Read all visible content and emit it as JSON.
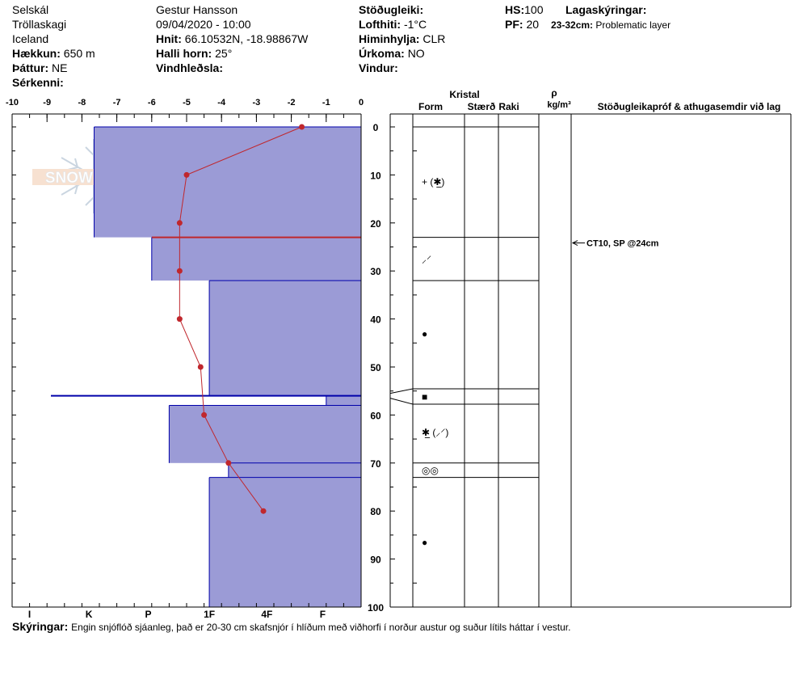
{
  "header": {
    "location": "Selskál",
    "region": "Tröllaskagi",
    "country": "Iceland",
    "elevation_label": "Hækkun:",
    "elevation_value": "650 m",
    "aspect_label": "Þáttur:",
    "aspect_value": "NE",
    "features_label": "Sérkenni:",
    "observer": "Gestur Hansson",
    "datetime": "09/04/2020 - 10:00",
    "coords_label": "Hnit:",
    "coords_value": "66.10532N, -18.98867W",
    "slope_label": "Halli horn:",
    "slope_value": "25°",
    "wind_loading_label": "Vindhleðsla:",
    "stability_label": "Stöðugleiki:",
    "air_temp_label": "Lofthiti:",
    "air_temp_value": "-1°C",
    "sky_label": "Himinhylja:",
    "sky_value": "CLR",
    "precip_label": "Úrkoma:",
    "precip_value": "NO",
    "wind_label": "Vindur:",
    "hs_label": "HS:",
    "hs_value": "100",
    "pf_label": "PF:",
    "pf_value": "20",
    "legend_label": "Lagaskýringar:",
    "problem_range": "23-32cm:",
    "problem_text": "Problematic layer"
  },
  "logo_text": "SNOW PILOT",
  "table_headers": {
    "crystal": "Kristal",
    "form": "Form",
    "size": "Stærð",
    "moisture": "Raki",
    "rho": "ρ",
    "density_unit": "kg/m³",
    "tests": "Stöðugleikapróf & athugasemdir við lag"
  },
  "footer": {
    "label": "Skýringar:",
    "text": "Engin snjóflóð sjáanleg, það er 20-30 cm skafsnjór í hlíðum með viðhorfi í norður austur og suður lítils háttar í vestur."
  },
  "chart_data": {
    "type": "snow-profile",
    "temp_axis": {
      "ticks": [
        -10,
        -9,
        -8,
        -7,
        -6,
        -5,
        -4,
        -3,
        -2,
        -1,
        0
      ],
      "range": [
        -10,
        0
      ]
    },
    "depth_axis": {
      "ticks": [
        0,
        10,
        20,
        30,
        40,
        50,
        60,
        70,
        80,
        90,
        100
      ],
      "range": [
        0,
        100
      ]
    },
    "hardness_axis": {
      "labels": [
        "I",
        "K",
        "P",
        "1F",
        "4F",
        "F"
      ]
    },
    "temperature_profile": [
      {
        "depth": 0,
        "temp": -1.7
      },
      {
        "depth": 10,
        "temp": -5.0
      },
      {
        "depth": 20,
        "temp": -5.2
      },
      {
        "depth": 30,
        "temp": -5.2
      },
      {
        "depth": 40,
        "temp": -5.2
      },
      {
        "depth": 50,
        "temp": -4.6
      },
      {
        "depth": 60,
        "temp": -4.5
      },
      {
        "depth": 70,
        "temp": -3.8
      },
      {
        "depth": 80,
        "temp": -2.8
      }
    ],
    "layers": [
      {
        "top": 0,
        "bottom": 23,
        "hardness_pos": 2.35,
        "form": "+ (✱̲)"
      },
      {
        "top": 23,
        "bottom": 32,
        "hardness_pos": 4.0,
        "form": "⸝⸍",
        "problem": true
      },
      {
        "top": 32,
        "bottom": 56,
        "hardness_pos": 5.65,
        "form": "●"
      },
      {
        "top": 56,
        "bottom": 58,
        "hardness_pos": 9.0,
        "form": "■"
      },
      {
        "top": 58,
        "bottom": 70,
        "hardness_pos": 4.5,
        "form": "✱̲ (⸝⸍)"
      },
      {
        "top": 70,
        "bottom": 73,
        "hardness_pos": 6.2,
        "form": "◎◎"
      },
      {
        "top": 73,
        "bottom": 100,
        "hardness_pos": 5.65,
        "form": "●"
      }
    ],
    "stability_tests": [
      {
        "depth": 24,
        "label": "CT10, SP @24cm"
      }
    ]
  }
}
